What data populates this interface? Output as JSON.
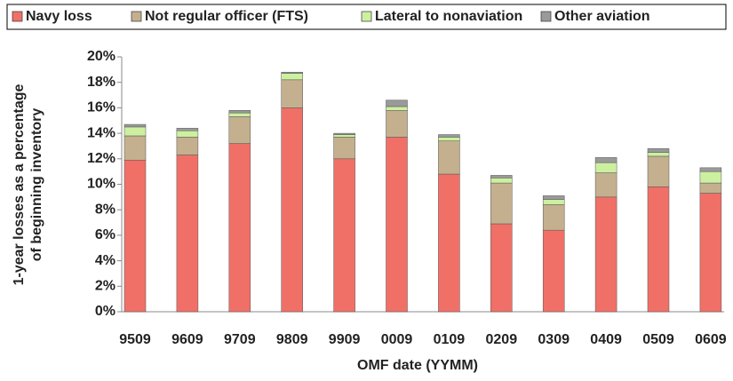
{
  "chart_data": {
    "type": "stacked-bar",
    "ylabel": [
      "1-year losses as a percentage",
      "of beginning inventory"
    ],
    "xlabel": "OMF date (YYMM)",
    "categories": [
      "9509",
      "9609",
      "9709",
      "9809",
      "9909",
      "0009",
      "0109",
      "0209",
      "0309",
      "0409",
      "0509",
      "0609"
    ],
    "series": [
      {
        "name": "Navy loss",
        "color": "#f07068",
        "values": [
          11.9,
          12.3,
          13.2,
          16.0,
          12.0,
          13.7,
          10.8,
          6.9,
          6.4,
          9.0,
          9.8,
          9.3
        ]
      },
      {
        "name": "Not regular officer (FTS)",
        "color": "#c4b08f",
        "values": [
          1.9,
          1.4,
          2.1,
          2.2,
          1.7,
          2.1,
          2.6,
          3.2,
          2.0,
          1.9,
          2.4,
          0.8
        ]
      },
      {
        "name": "Lateral to nonaviation",
        "color": "#ccf0a0",
        "values": [
          0.7,
          0.5,
          0.3,
          0.5,
          0.2,
          0.3,
          0.3,
          0.4,
          0.4,
          0.8,
          0.3,
          0.9
        ]
      },
      {
        "name": "Other aviation",
        "color": "#9a9a9a",
        "values": [
          0.2,
          0.2,
          0.2,
          0.1,
          0.1,
          0.5,
          0.2,
          0.2,
          0.3,
          0.4,
          0.3,
          0.3
        ]
      }
    ],
    "ylim": [
      0,
      20
    ],
    "yticks": [
      {
        "value": 0,
        "label": "0%"
      },
      {
        "value": 2,
        "label": "2%"
      },
      {
        "value": 4,
        "label": "4%"
      },
      {
        "value": 6,
        "label": "6%"
      },
      {
        "value": 8,
        "label": "8%"
      },
      {
        "value": 10,
        "label": "10%"
      },
      {
        "value": 12,
        "label": "12%"
      },
      {
        "value": 14,
        "label": "14%"
      },
      {
        "value": 16,
        "label": "16%"
      },
      {
        "value": 18,
        "label": "18%"
      },
      {
        "value": 20,
        "label": "20%"
      }
    ],
    "legend": "top"
  }
}
